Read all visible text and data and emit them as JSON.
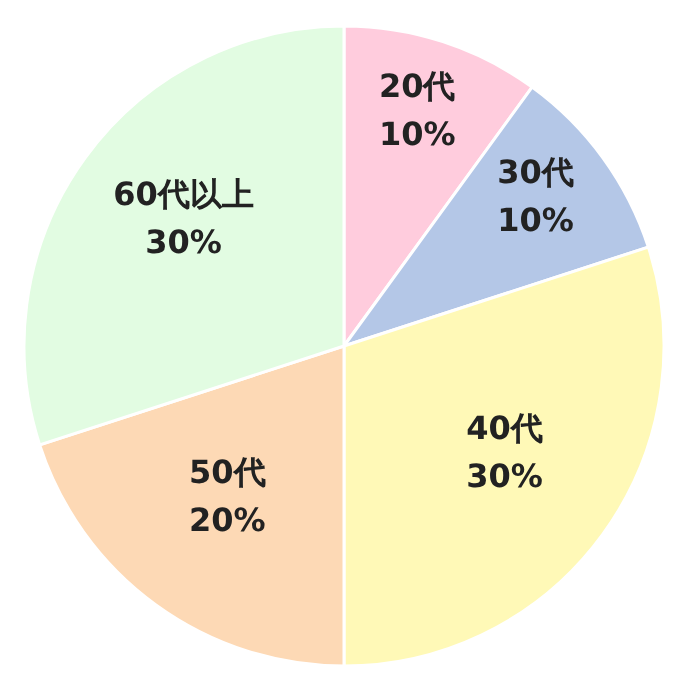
{
  "chart_data": {
    "type": "pie",
    "categories": [
      "20代",
      "30代",
      "40代",
      "50代",
      "60代以上"
    ],
    "values": [
      10,
      10,
      30,
      20,
      30
    ],
    "value_labels": [
      "10%",
      "10%",
      "30%",
      "20%",
      "30%"
    ],
    "colors": [
      "#ffccdd",
      "#b4c7e7",
      "#fff9b7",
      "#fdd9b5",
      "#e2fce2"
    ]
  }
}
